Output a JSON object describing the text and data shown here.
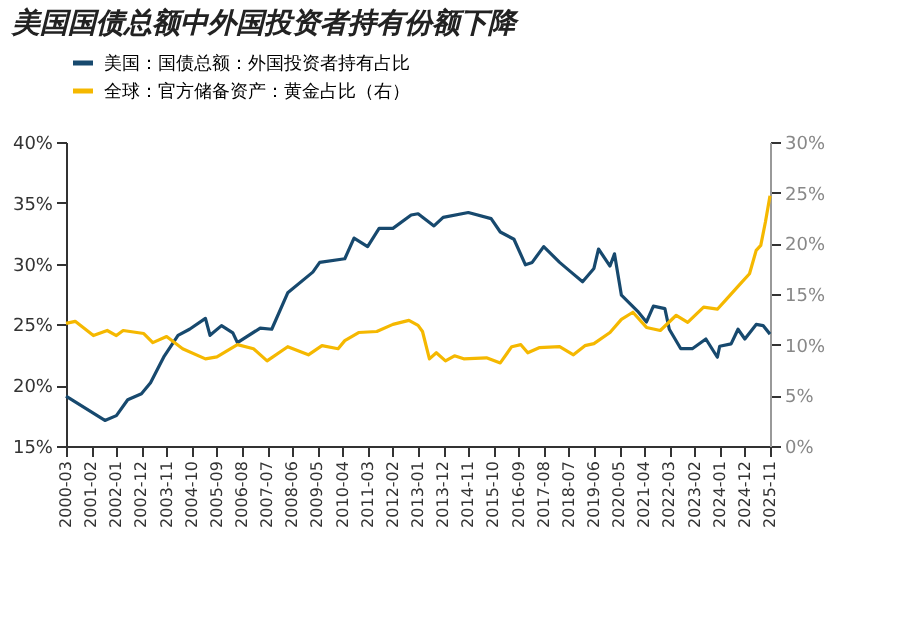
{
  "chart_data": {
    "type": "line",
    "title": "美国国债总额中外国投资者持有份额下降",
    "xlim": [
      "2000-03",
      "2025-11"
    ],
    "xticks": [
      "2000-03",
      "2001-02",
      "2002-01",
      "2002-12",
      "2003-11",
      "2004-10",
      "2005-09",
      "2006-08",
      "2007-07",
      "2008-06",
      "2009-05",
      "2010-04",
      "2011-03",
      "2012-02",
      "2013-01",
      "2013-12",
      "2014-11",
      "2015-10",
      "2016-09",
      "2017-08",
      "2018-07",
      "2019-06",
      "2020-05",
      "2021-04",
      "2022-03",
      "2023-02",
      "2024-01",
      "2024-12",
      "2025-11"
    ],
    "ylim": [
      15,
      40
    ],
    "yticks": [
      {
        "value": 15,
        "label": "15%"
      },
      {
        "value": 20,
        "label": "20%"
      },
      {
        "value": 25,
        "label": "25%"
      },
      {
        "value": 30,
        "label": "30%"
      },
      {
        "value": 35,
        "label": "35%"
      },
      {
        "value": 40,
        "label": "40%"
      }
    ],
    "y2lim": [
      0,
      30
    ],
    "y2ticks": [
      {
        "value": 0,
        "label": "0%"
      },
      {
        "value": 5,
        "label": "5%"
      },
      {
        "value": 10,
        "label": "10%"
      },
      {
        "value": 15,
        "label": "15%"
      },
      {
        "value": 20,
        "label": "20%"
      },
      {
        "value": 25,
        "label": "25%"
      },
      {
        "value": 30,
        "label": "30%"
      }
    ],
    "grid": false,
    "legend": "top",
    "series": [
      {
        "name": "美国：国债总额：外国投资者持有占比",
        "color": "#17496e",
        "x": [
          "2000-03",
          "2001-08",
          "2002-01",
          "2002-06",
          "2002-12",
          "2003-04",
          "2003-10",
          "2004-04",
          "2004-09",
          "2005-04",
          "2005-06",
          "2005-11",
          "2006-04",
          "2006-06",
          "2007-04",
          "2007-09",
          "2008-04",
          "2009-03",
          "2009-06",
          "2010-05",
          "2010-09",
          "2011-03",
          "2011-08",
          "2012-02",
          "2012-10",
          "2013-01",
          "2013-08",
          "2013-12",
          "2014-11",
          "2015-09",
          "2016-01",
          "2016-07",
          "2016-12",
          "2017-03",
          "2017-08",
          "2018-03",
          "2018-08",
          "2019-01",
          "2019-06",
          "2019-08",
          "2020-01",
          "2020-03",
          "2020-06",
          "2021-01",
          "2021-05",
          "2021-08",
          "2022-01",
          "2022-03",
          "2022-08",
          "2023-01",
          "2023-07",
          "2023-12",
          "2024-01",
          "2024-06",
          "2024-09",
          "2024-12",
          "2025-05",
          "2025-08",
          "2025-11"
        ],
        "values": [
          19.1,
          17.1,
          17.5,
          18.8,
          19.3,
          20.2,
          22.4,
          24.1,
          24.6,
          25.5,
          24.1,
          24.9,
          24.3,
          23.5,
          24.7,
          24.6,
          27.6,
          29.3,
          30.1,
          30.4,
          32.1,
          31.4,
          32.9,
          32.9,
          34.0,
          34.1,
          33.1,
          33.8,
          34.2,
          33.7,
          32.6,
          32.0,
          29.9,
          30.1,
          31.4,
          30.1,
          29.3,
          28.5,
          29.6,
          31.2,
          29.8,
          30.8,
          27.4,
          26.1,
          25.2,
          26.5,
          26.3,
          24.6,
          23.0,
          23.0,
          23.8,
          22.3,
          23.2,
          23.4,
          24.6,
          23.8,
          25.0,
          24.9,
          24.2
        ]
      },
      {
        "name": "全球：官方储备资产：黄金占比（右）",
        "color": "#f5b800",
        "axis": "y2",
        "x": [
          "2000-03",
          "2000-07",
          "2001-03",
          "2001-09",
          "2002-01",
          "2002-04",
          "2003-01",
          "2003-05",
          "2003-11",
          "2004-06",
          "2005-04",
          "2005-09",
          "2006-06",
          "2007-01",
          "2007-07",
          "2008-04",
          "2009-01",
          "2009-07",
          "2010-02",
          "2010-05",
          "2010-11",
          "2011-07",
          "2012-02",
          "2012-09",
          "2013-01",
          "2013-03",
          "2013-06",
          "2013-09",
          "2014-01",
          "2014-05",
          "2014-09",
          "2015-07",
          "2016-01",
          "2016-06",
          "2016-10",
          "2017-01",
          "2017-06",
          "2018-03",
          "2018-09",
          "2019-02",
          "2019-06",
          "2020-01",
          "2020-06",
          "2020-11",
          "2021-05",
          "2021-11",
          "2022-06",
          "2022-11",
          "2023-06",
          "2023-12",
          "2024-04",
          "2024-10",
          "2025-02",
          "2025-05",
          "2025-07",
          "2025-09",
          "2025-11"
        ],
        "values": [
          12.1,
          12.3,
          10.9,
          11.4,
          10.9,
          11.4,
          11.1,
          10.2,
          10.8,
          9.6,
          8.6,
          8.8,
          10.0,
          9.6,
          8.4,
          9.8,
          9.0,
          9.9,
          9.6,
          10.4,
          11.2,
          11.3,
          12.0,
          12.4,
          11.9,
          11.3,
          8.6,
          9.2,
          8.4,
          8.9,
          8.6,
          8.7,
          8.2,
          9.8,
          10.0,
          9.2,
          9.7,
          9.8,
          9.0,
          9.9,
          10.1,
          11.2,
          12.5,
          13.2,
          11.7,
          11.4,
          12.9,
          12.2,
          13.7,
          13.5,
          14.5,
          16.0,
          17.0,
          19.3,
          19.8,
          22.1,
          24.7
        ]
      }
    ]
  }
}
